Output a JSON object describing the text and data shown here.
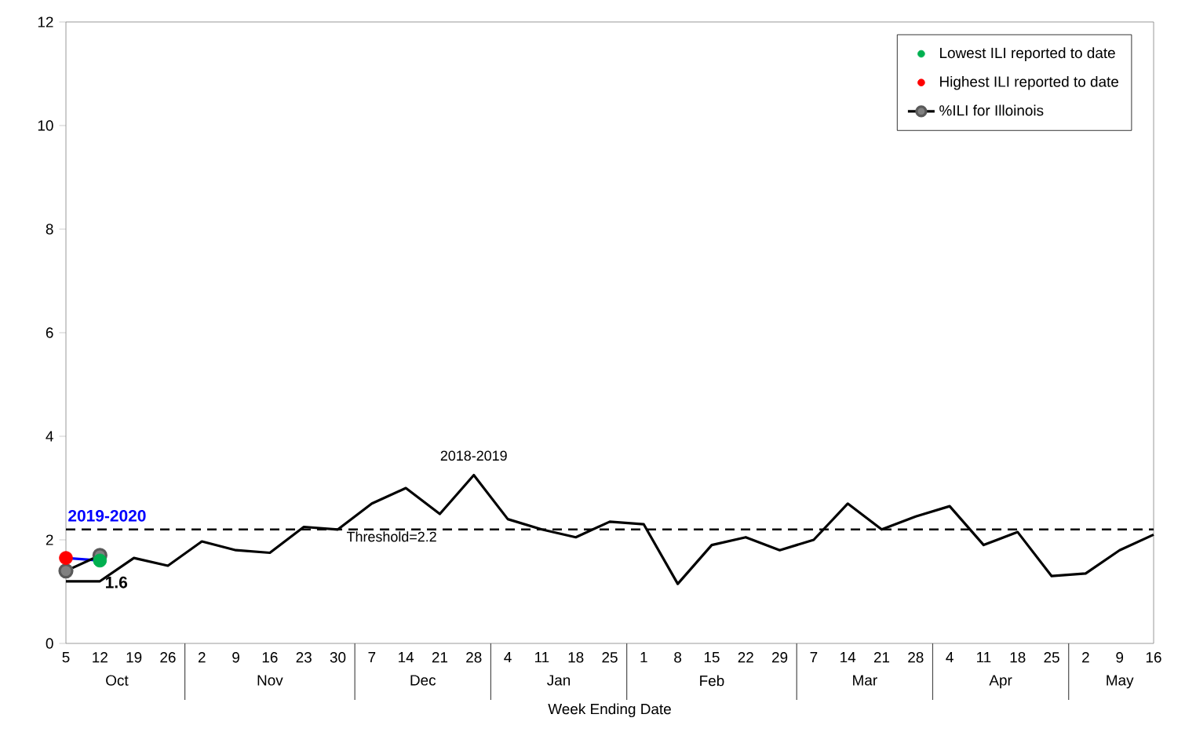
{
  "chart_data": {
    "type": "line",
    "xlabel": "Week Ending Date",
    "categories": [
      "5",
      "12",
      "19",
      "26",
      "2",
      "9",
      "16",
      "23",
      "30",
      "7",
      "14",
      "21",
      "28",
      "4",
      "11",
      "18",
      "25",
      "1",
      "8",
      "15",
      "22",
      "29",
      "7",
      "14",
      "21",
      "28",
      "4",
      "11",
      "18",
      "25",
      "2",
      "9",
      "16"
    ],
    "annotations": [
      "Oct",
      "Nov",
      "Dec",
      "Jan",
      "Feb",
      "Mar",
      "Apr",
      "May"
    ],
    "series": [
      {
        "name": "Lowest ILI reported to date",
        "type": "scatter",
        "color": "#00b050",
        "values": [
          null,
          1.6,
          null,
          null,
          null,
          null,
          null,
          null,
          null,
          null,
          null,
          null,
          null,
          null,
          null,
          null,
          null,
          null,
          null,
          null,
          null,
          null,
          null,
          null,
          null,
          null,
          null,
          null,
          null,
          null,
          null,
          null,
          null
        ]
      },
      {
        "name": "Highest ILI reported to date",
        "type": "scatter",
        "color": "#ff0000",
        "values": [
          1.65,
          null,
          null,
          null,
          null,
          null,
          null,
          null,
          null,
          null,
          null,
          null,
          null,
          null,
          null,
          null,
          null,
          null,
          null,
          null,
          null,
          null,
          null,
          null,
          null,
          null,
          null,
          null,
          null,
          null,
          null,
          null,
          null
        ]
      },
      {
        "name": "%ILI for Illoinois",
        "color": "#000000",
        "marker": "circle",
        "values": [
          1.4,
          1.7,
          null,
          null,
          null,
          null,
          null,
          null,
          null,
          null,
          null,
          null,
          null,
          null,
          null,
          null,
          null,
          null,
          null,
          null,
          null,
          null,
          null,
          null,
          null,
          null,
          null,
          null,
          null,
          null,
          null,
          null,
          null
        ]
      },
      {
        "name": "2018-2019",
        "color": "#000000",
        "values": [
          1.2,
          1.2,
          1.65,
          1.5,
          1.97,
          1.8,
          1.75,
          2.25,
          2.2,
          2.7,
          3.0,
          2.5,
          3.25,
          2.4,
          2.2,
          2.05,
          2.35,
          2.3,
          1.15,
          1.9,
          2.05,
          1.8,
          2.0,
          2.7,
          2.2,
          2.45,
          2.65,
          1.9,
          2.15,
          1.3,
          1.35,
          1.8,
          2.1
        ]
      },
      {
        "name": "2019-2020",
        "color": "#0000ff",
        "values": [
          1.65,
          1.6,
          null,
          null,
          null,
          null,
          null,
          null,
          null,
          null,
          null,
          null,
          null,
          null,
          null,
          null,
          null,
          null,
          null,
          null,
          null,
          null,
          null,
          null,
          null,
          null,
          null,
          null,
          null,
          null,
          null,
          null,
          null
        ],
        "value_labels": [
          null,
          "1.6",
          null,
          null,
          null,
          null,
          null,
          null,
          null,
          null,
          null,
          null,
          null,
          null,
          null,
          null,
          null,
          null,
          null,
          null,
          null,
          null,
          null,
          null,
          null,
          null,
          null,
          null,
          null,
          null,
          null,
          null,
          null
        ]
      }
    ],
    "ylim": [
      0,
      12
    ],
    "yticks": [
      0,
      2,
      4,
      6,
      8,
      10,
      12
    ],
    "ref_lines": [
      {
        "axis": "y",
        "value": 2.2,
        "label": "Threshold=2.2",
        "line_style": "dashed"
      }
    ],
    "legend": "top right",
    "grid": false
  }
}
